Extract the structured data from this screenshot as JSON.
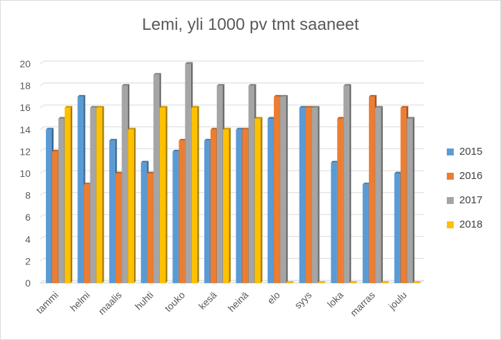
{
  "chart_data": {
    "type": "bar",
    "title": "Lemi, yli 1000 pv tmt saaneet",
    "categories": [
      "tammi",
      "helmi",
      "maalis",
      "huhti",
      "touko",
      "kesä",
      "heinä",
      "elo",
      "syys",
      "loka",
      "marras",
      "joulu"
    ],
    "series": [
      {
        "name": "2015",
        "color": "#5b9bd5",
        "values": [
          14,
          17,
          13,
          11,
          12,
          13,
          14,
          15,
          16,
          11,
          9,
          10
        ]
      },
      {
        "name": "2016",
        "color": "#ed7d31",
        "values": [
          12,
          9,
          10,
          10,
          13,
          14,
          14,
          17,
          16,
          15,
          17,
          16
        ]
      },
      {
        "name": "2017",
        "color": "#a5a5a5",
        "values": [
          15,
          16,
          18,
          19,
          20,
          18,
          18,
          17,
          16,
          18,
          16,
          15
        ]
      },
      {
        "name": "2018",
        "color": "#ffc000",
        "values": [
          16,
          16,
          14,
          16,
          16,
          14,
          15,
          0,
          0,
          0,
          0,
          0
        ]
      }
    ],
    "yticks": [
      "0",
      "2",
      "4",
      "6",
      "8",
      "10",
      "12",
      "14",
      "16",
      "18",
      "20"
    ],
    "ylim": [
      0,
      20
    ],
    "grid": true,
    "legend_position": "right"
  }
}
